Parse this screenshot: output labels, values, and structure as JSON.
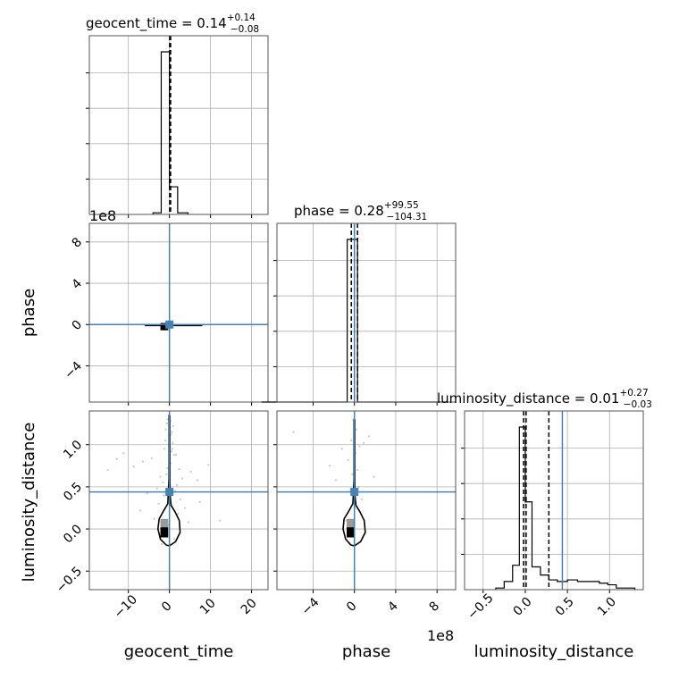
{
  "chart_data": {
    "type": "corner",
    "parameters": [
      "geocent_time",
      "phase",
      "luminosity_distance"
    ],
    "truths": {
      "geocent_time": 0.0,
      "phase": 0.0,
      "luminosity_distance": 0.44
    },
    "colors": {
      "truth": "#4682b4",
      "hist": "#000000",
      "grid": "#b0b0b0",
      "scatter": "#9a9a9a"
    },
    "grid": true,
    "titles": [
      {
        "param": "geocent_time",
        "text": "geocent_time = 0.14",
        "plus": "+0.14",
        "minus": "−0.08"
      },
      {
        "param": "phase",
        "text": "phase = 0.28",
        "plus": "+99.55",
        "minus": "−104.31"
      },
      {
        "param": "luminosity_distance",
        "text": "luminosity_distance = 0.01",
        "plus": "+0.27",
        "minus": "−0.03"
      }
    ],
    "axis_labels": {
      "geocent_time": "geocent_time",
      "phase": "phase",
      "luminosity_distance": "luminosity_distance"
    },
    "offset_labels": {
      "phase_y": "1e8",
      "phase_x": "1e8"
    },
    "ranges": {
      "geocent_time": [
        -19.5,
        24.0
      ],
      "phase": [
        -7.5,
        9.8
      ],
      "luminosity_distance": [
        -0.72,
        1.4
      ]
    },
    "ticks": {
      "geocent_time": [
        -10,
        0,
        10,
        20
      ],
      "phase": [
        -4,
        0,
        4,
        8
      ],
      "luminosity_distance": [
        -0.5,
        0.0,
        0.5,
        1.0
      ]
    },
    "tick_labels": {
      "geocent_time": [
        "−10",
        "0",
        "10",
        "20"
      ],
      "phase": [
        "−4",
        "0",
        "4",
        "8"
      ],
      "luminosity_distance": [
        "−0.5",
        "0.0",
        "0.5",
        "1.0"
      ]
    },
    "quantile_lines": {
      "geocent_time": [
        0.06,
        0.14,
        0.28
      ],
      "phase": [
        -1.0431e-06,
        2.8e-09,
        9.983e-07
      ],
      "luminosity_distance": [
        -0.02,
        0.01,
        0.28
      ]
    },
    "histograms": {
      "geocent_time": {
        "bin_edges": [
          -4.0,
          -2.0,
          -0.5,
          0.0,
          0.5,
          2.0,
          4.5
        ],
        "counts": [
          0.01,
          1.0,
          1.0,
          0.17,
          0.17,
          0.01
        ]
      },
      "phase": {
        "bin_edges": [
          -9.0,
          -0.7,
          0.0,
          0.3,
          9.0
        ],
        "counts": [
          0.0,
          1.0,
          1.0,
          0.0
        ]
      },
      "luminosity_distance": {
        "bin_edges": [
          -0.35,
          -0.25,
          -0.15,
          -0.07,
          0.0,
          0.08,
          0.18,
          0.28,
          0.38,
          0.5,
          0.62,
          0.75,
          0.88,
          0.98,
          1.08,
          1.15,
          1.22,
          1.3
        ],
        "counts": [
          0.01,
          0.05,
          0.15,
          1.0,
          0.54,
          0.14,
          0.09,
          0.06,
          0.05,
          0.06,
          0.05,
          0.05,
          0.04,
          0.03,
          0.01,
          0.01,
          0.01
        ]
      }
    },
    "scatter": {
      "geocent_time_vs_luminosity_distance": {
        "x": [
          -0.6,
          0.4,
          -1.2,
          1.1,
          -0.2,
          0.3,
          -2.2,
          2.4,
          -4.3,
          0.8,
          -1.6,
          3.1,
          -0.9,
          0.5,
          -3.0,
          1.8,
          -0.4,
          0.1,
          -6.5,
          5.2,
          -1.4,
          2.7,
          -8.7,
          0.9,
          -0.1,
          1.4,
          -2.6,
          6.8,
          -11.2,
          0.6,
          -0.7,
          3.8,
          -5.4,
          9.5,
          -1.0,
          0.2,
          -12.8,
          2.1,
          -3.7,
          7.4,
          -0.3,
          1.2,
          -1.9,
          4.6,
          -7.1,
          0.7,
          -0.5,
          12.3,
          -15.0,
          1.6
        ],
        "y": [
          1.25,
          1.12,
          0.95,
          0.88,
          1.35,
          0.78,
          0.62,
          0.71,
          0.84,
          1.02,
          0.55,
          0.6,
          1.18,
          0.92,
          0.48,
          0.52,
          1.3,
          1.08,
          0.8,
          0.68,
          0.4,
          0.35,
          0.74,
          1.22,
          0.98,
          0.45,
          0.3,
          0.58,
          0.9,
          1.15,
          0.65,
          0.25,
          0.42,
          0.76,
          1.05,
          1.28,
          0.83,
          0.18,
          0.12,
          0.32,
          0.05,
          -0.12,
          -0.18,
          0.08,
          0.22,
          0.95,
          0.72,
          0.1,
          0.7,
          0.88
        ]
      },
      "phase_vs_luminosity_distance": {
        "x": [
          -0.1,
          0.2,
          -0.3,
          0.5,
          0.1,
          -0.6,
          0.9,
          -1.2,
          0.3,
          -0.2,
          1.4,
          -1.8,
          0.4,
          -0.4,
          0.7,
          -5.9,
          -2.4,
          1.9,
          0.0,
          -0.8
        ],
        "y": [
          1.3,
          1.18,
          1.05,
          0.98,
          0.9,
          0.82,
          1.02,
          0.95,
          0.7,
          0.65,
          1.1,
          0.58,
          0.5,
          0.45,
          0.35,
          1.15,
          0.75,
          0.62,
          0.25,
          0.1
        ]
      }
    },
    "contours": {
      "geocent_time_vs_luminosity_distance": {
        "x": [
          0.0,
          1.5,
          2.6,
          2.4,
          1.4,
          0.4,
          0.2,
          0.1,
          0.0,
          -0.1,
          -0.4,
          -1.6,
          -2.5,
          -2.8,
          -2.2,
          -0.8,
          0.0
        ],
        "y": [
          -0.2,
          -0.15,
          -0.04,
          0.1,
          0.2,
          0.28,
          0.38,
          0.6,
          1.35,
          0.6,
          0.3,
          0.2,
          0.12,
          0.0,
          -0.12,
          -0.19,
          -0.2
        ]
      },
      "phase_vs_luminosity_distance": {
        "x": [
          0.0,
          0.6,
          1.05,
          0.95,
          0.55,
          0.15,
          0.07,
          0.03,
          0.0,
          -0.03,
          -0.15,
          -0.6,
          -1.0,
          -1.1,
          -0.85,
          -0.35,
          0.0
        ],
        "y": [
          -0.2,
          -0.15,
          -0.04,
          0.1,
          0.2,
          0.28,
          0.38,
          0.6,
          1.3,
          0.6,
          0.3,
          0.2,
          0.12,
          0.0,
          -0.12,
          -0.19,
          -0.2
        ]
      },
      "geocent_time_vs_phase": {
        "x": [
          -0.9,
          0.9,
          0.9,
          -0.9,
          -0.9
        ],
        "y": [
          -0.35,
          -0.35,
          0.25,
          0.25,
          -0.35
        ]
      }
    },
    "density_blocks": {
      "geocent_time_vs_luminosity_distance": [
        {
          "x": [
            -2.2,
            -0.3
          ],
          "y": [
            0.02,
            0.12
          ],
          "shade": "#9a9a9a"
        },
        {
          "x": [
            -2.2,
            -0.3
          ],
          "y": [
            -0.1,
            0.02
          ],
          "shade": "#000000"
        }
      ],
      "phase_vs_luminosity_distance": [
        {
          "x": [
            -0.75,
            0.0
          ],
          "y": [
            0.02,
            0.12
          ],
          "shade": "#9a9a9a"
        },
        {
          "x": [
            -0.75,
            0.0
          ],
          "y": [
            -0.1,
            0.02
          ],
          "shade": "#000000"
        }
      ],
      "geocent_time_vs_phase": [
        {
          "x": [
            -2.2,
            -0.3
          ],
          "y": [
            -0.55,
            0.15
          ],
          "shade": "#000000"
        }
      ]
    }
  }
}
